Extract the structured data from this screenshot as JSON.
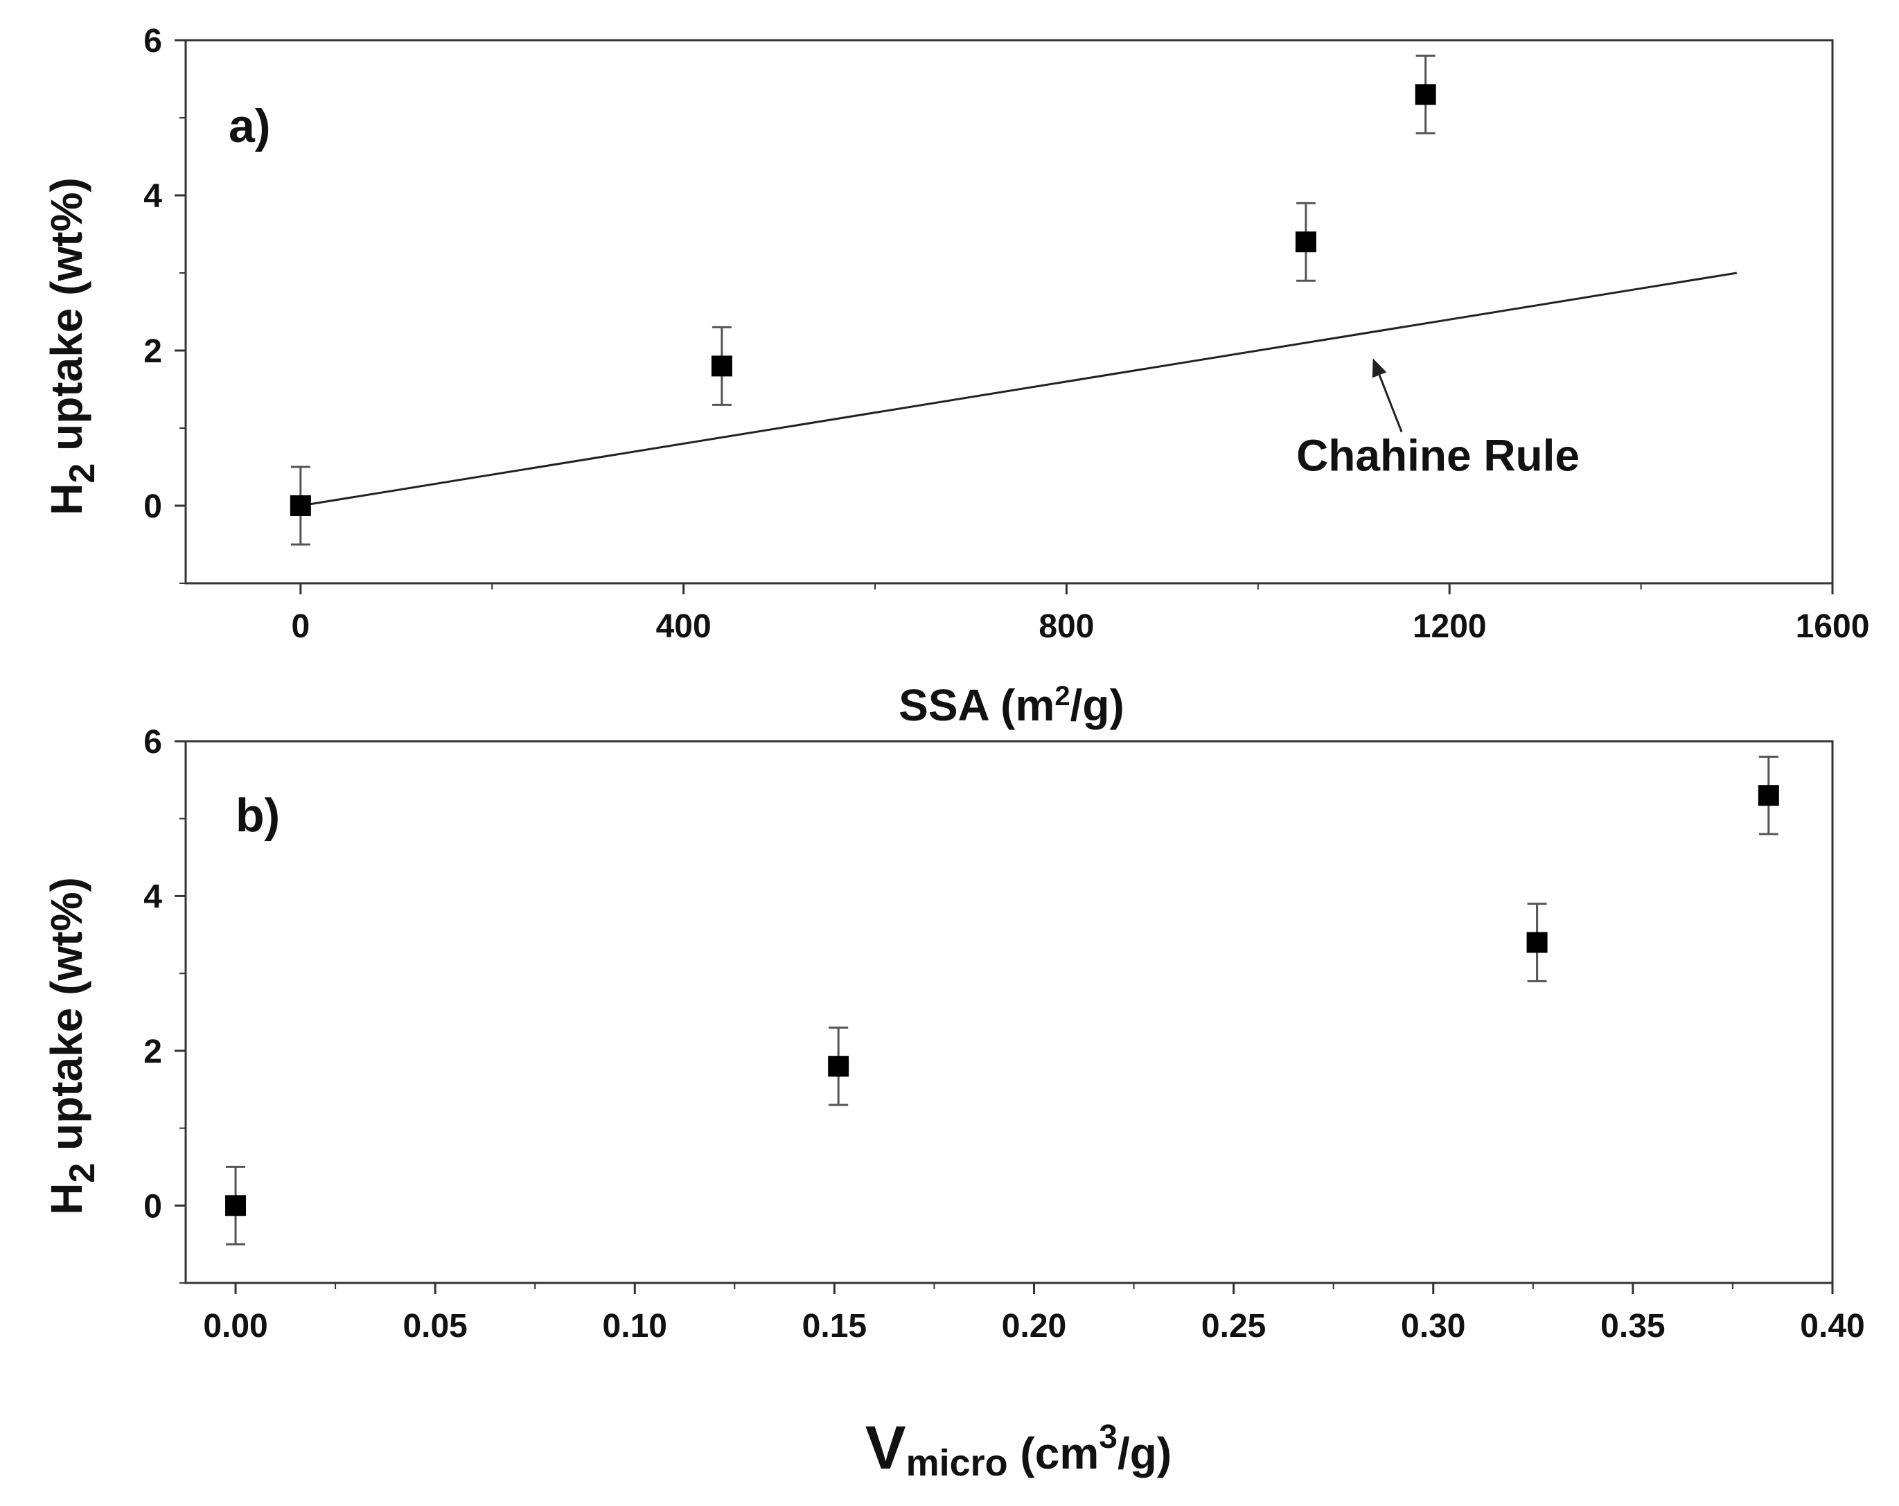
{
  "chart_data": [
    {
      "type": "scatter",
      "panel_label": "a)",
      "xlabel": {
        "text": "SSA (m",
        "sup": "2",
        "tail": "/g)"
      },
      "ylabel": {
        "pre": "H",
        "sub": "2",
        "post": " uptake (wt%)"
      },
      "xlim": [
        -120,
        1600
      ],
      "ylim": [
        -1,
        6
      ],
      "xticks": [
        0,
        400,
        800,
        1200,
        1600
      ],
      "xtick_labels": [
        "0",
        "400",
        "800",
        "1200",
        "1600"
      ],
      "yticks": [
        0,
        2,
        4,
        6
      ],
      "ytick_labels": [
        "0",
        "2",
        "4",
        "6"
      ],
      "x_minor_step": 200,
      "y_minor_step": 1,
      "series": [
        {
          "name": "H2 uptake",
          "marker": "square",
          "x": [
            0,
            440,
            1050,
            1175
          ],
          "y": [
            0,
            1.8,
            3.4,
            5.3
          ],
          "yerr": [
            0.5,
            0.5,
            0.5,
            0.5
          ]
        }
      ],
      "lines": [
        {
          "name": "Chahine Rule",
          "x": [
            0,
            1500
          ],
          "y": [
            0,
            3.0
          ]
        }
      ],
      "annotation": {
        "text": "Chahine Rule",
        "text_at": [
          1040,
          0.45
        ],
        "arrow_from": [
          1150,
          0.95
        ],
        "arrow_to": [
          1120,
          1.9
        ]
      },
      "grid": false,
      "colors": {
        "marker": "#000000",
        "line": "#222222",
        "errorbar": "#555555",
        "axis": "#333333"
      }
    },
    {
      "type": "scatter",
      "panel_label": "b)",
      "xlabel": {
        "main": "V",
        "sub": "micro",
        "text": " (cm",
        "sup": "3",
        "tail": "/g)"
      },
      "ylabel": {
        "pre": "H",
        "sub": "2",
        "post": " uptake (wt%)"
      },
      "xlim": [
        -0.0125,
        0.4
      ],
      "ylim": [
        -1,
        6
      ],
      "xticks": [
        0.0,
        0.05,
        0.1,
        0.15,
        0.2,
        0.25,
        0.3,
        0.35,
        0.4
      ],
      "xtick_labels": [
        "0.00",
        "0.05",
        "0.10",
        "0.15",
        "0.20",
        "0.25",
        "0.30",
        "0.35",
        "0.40"
      ],
      "yticks": [
        0,
        2,
        4,
        6
      ],
      "ytick_labels": [
        "0",
        "2",
        "4",
        "6"
      ],
      "x_minor_step": 0.025,
      "y_minor_step": 1,
      "series": [
        {
          "name": "H2 uptake",
          "marker": "square",
          "x": [
            0.0,
            0.151,
            0.326,
            0.384
          ],
          "y": [
            0,
            1.8,
            3.4,
            5.3
          ],
          "yerr": [
            0.5,
            0.5,
            0.5,
            0.5
          ]
        }
      ],
      "grid": false,
      "colors": {
        "marker": "#000000",
        "errorbar": "#555555",
        "axis": "#333333"
      }
    }
  ]
}
